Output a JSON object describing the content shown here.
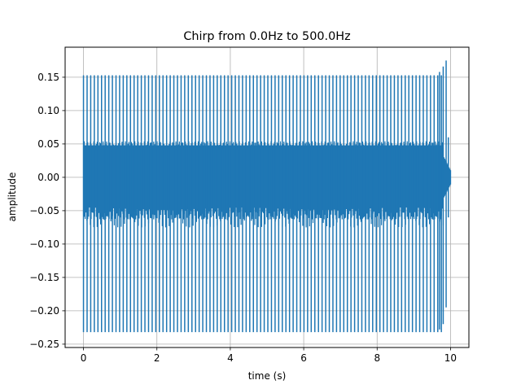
{
  "chart_data": {
    "type": "line",
    "title": "Chirp  from 0.0Hz  to 500.0Hz",
    "xlabel": "time (s)",
    "ylabel": "amplitude",
    "xlim": [
      -0.5,
      10.5
    ],
    "ylim": [
      -0.255,
      0.195
    ],
    "xticks": [
      0,
      2,
      4,
      6,
      8,
      10
    ],
    "xtick_labels": [
      "0",
      "2",
      "4",
      "6",
      "8",
      "10"
    ],
    "yticks": [
      0.15,
      0.1,
      0.05,
      0.0,
      -0.05,
      -0.1,
      -0.15,
      -0.2,
      -0.25
    ],
    "ytick_labels": [
      "0.15",
      "0.10",
      "0.05",
      "0.00",
      "−0.05",
      "−0.10",
      "−0.15",
      "−0.20",
      "−0.25"
    ],
    "grid": true,
    "series": [
      {
        "color": "#1f77b4",
        "x_range": [
          0,
          10
        ],
        "dense_band": [
          -0.045,
          0.048
        ],
        "spike_max": 0.153,
        "spike_min": -0.232,
        "spike_count": 100,
        "envelope_end": {
          "max": 0.175,
          "min": -0.195,
          "tail_band": [
            -0.03,
            0.03
          ]
        }
      }
    ]
  }
}
